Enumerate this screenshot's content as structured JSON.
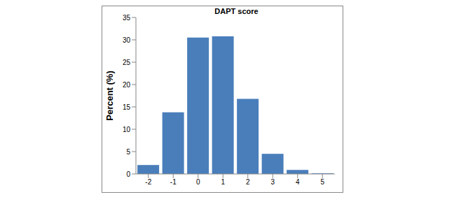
{
  "chart_data": {
    "type": "bar",
    "title": "DAPT score",
    "y_label": "Percent (%)",
    "categories": [
      "-2",
      "-1",
      "0",
      "1",
      "2",
      "3",
      "4",
      "5"
    ],
    "values": [
      2.0,
      13.8,
      30.5,
      30.8,
      16.8,
      4.5,
      0.9,
      0.15
    ],
    "color": "#4a7ebb",
    "ylim": [
      0,
      35
    ],
    "yticks": [
      0,
      5,
      10,
      15,
      20,
      25,
      30,
      35
    ],
    "grid": false
  }
}
